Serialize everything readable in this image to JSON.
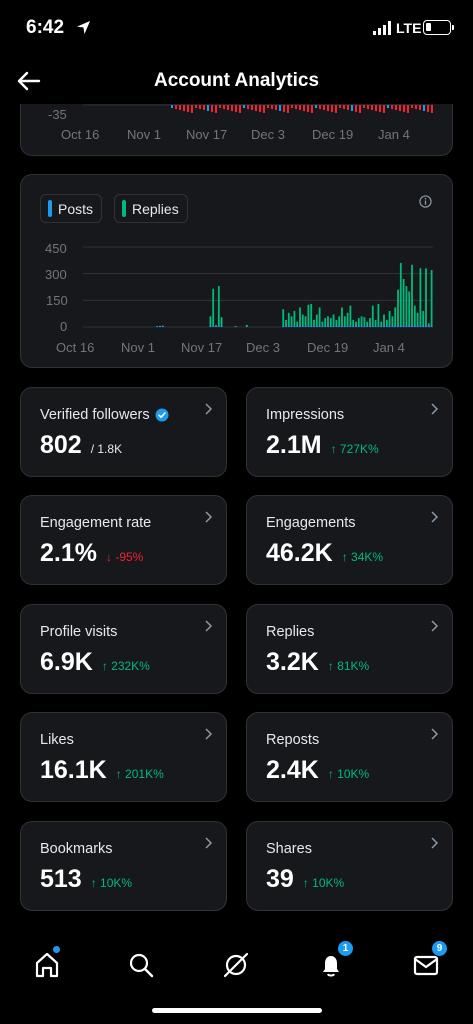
{
  "status_bar": {
    "time": "6:42",
    "network": "LTE"
  },
  "header": {
    "title": "Account Analytics"
  },
  "top_chart": {
    "ytick": "-35",
    "xticks": [
      "Oct 16",
      "Nov 1",
      "Nov 17",
      "Dec 3",
      "Dec 19",
      "Jan 4"
    ]
  },
  "chart_data": {
    "type": "bar",
    "legend": [
      "Posts",
      "Replies"
    ],
    "colors": {
      "posts": "#1d9bf0",
      "replies": "#00ba7c"
    },
    "yticks": [
      "450",
      "300",
      "150",
      "0"
    ],
    "xticks": [
      "Oct 16",
      "Nov 1",
      "Nov 17",
      "Dec 3",
      "Dec 19",
      "Jan 4"
    ],
    "ylim": [
      0,
      450
    ],
    "grid": true,
    "replies": [
      0,
      0,
      0,
      0,
      0,
      0,
      0,
      0,
      0,
      0,
      0,
      0,
      0,
      0,
      0,
      0,
      0,
      0,
      0,
      0,
      0,
      0,
      0,
      0,
      0,
      0,
      5,
      6,
      8,
      0,
      0,
      0,
      0,
      0,
      0,
      0,
      0,
      0,
      0,
      0,
      0,
      0,
      0,
      0,
      0,
      60,
      215,
      10,
      230,
      55,
      0,
      0,
      0,
      0,
      4,
      0,
      0,
      0,
      12,
      0,
      0,
      0,
      0,
      0,
      0,
      0,
      0,
      0,
      0,
      0,
      0,
      100,
      40,
      80,
      60,
      90,
      30,
      110,
      70,
      60,
      125,
      130,
      40,
      70,
      110,
      30,
      50,
      60,
      50,
      70,
      40,
      60,
      110,
      60,
      80,
      120,
      40,
      30,
      50,
      60,
      55,
      30,
      50,
      120,
      40,
      130,
      30,
      70,
      40,
      90,
      60,
      110,
      210,
      360,
      270,
      230,
      200,
      350,
      120,
      80,
      330,
      90,
      330,
      20,
      320
    ],
    "posts": [
      0,
      0,
      0,
      0,
      0,
      0,
      0,
      0,
      0,
      0,
      0,
      0,
      0,
      0,
      0,
      0,
      0,
      0,
      0,
      0,
      0,
      0,
      0,
      0,
      0,
      0,
      2,
      2,
      3,
      0,
      0,
      0,
      0,
      0,
      0,
      0,
      0,
      0,
      0,
      0,
      0,
      0,
      0,
      0,
      0,
      6,
      5,
      4,
      6,
      5,
      0,
      0,
      0,
      0,
      2,
      0,
      0,
      0,
      3,
      0,
      0,
      0,
      0,
      0,
      0,
      0,
      0,
      0,
      0,
      0,
      0,
      6,
      6,
      7,
      6,
      8,
      6,
      7,
      8,
      6,
      7,
      8,
      6,
      7,
      8,
      6,
      7,
      8,
      6,
      7,
      8,
      6,
      7,
      8,
      6,
      7,
      8,
      6,
      7,
      8,
      6,
      7,
      8,
      6,
      7,
      8,
      6,
      7,
      8,
      6,
      7,
      9,
      10,
      9,
      8,
      10,
      9,
      8,
      10,
      9,
      8,
      10,
      9,
      8,
      10
    ]
  },
  "stats": [
    {
      "label": "Verified followers",
      "value": "802",
      "sub": "/ 1.8K",
      "delta": "",
      "dir": ""
    },
    {
      "label": "Impressions",
      "value": "2.1M",
      "sub": "",
      "delta": "↑ 727K%",
      "dir": "up"
    },
    {
      "label": "Engagement rate",
      "value": "2.1%",
      "sub": "",
      "delta": "↓ -95%",
      "dir": "down"
    },
    {
      "label": "Engagements",
      "value": "46.2K",
      "sub": "",
      "delta": "↑ 34K%",
      "dir": "up"
    },
    {
      "label": "Profile visits",
      "value": "6.9K",
      "sub": "",
      "delta": "↑ 232K%",
      "dir": "up"
    },
    {
      "label": "Replies",
      "value": "3.2K",
      "sub": "",
      "delta": "↑ 81K%",
      "dir": "up"
    },
    {
      "label": "Likes",
      "value": "16.1K",
      "sub": "",
      "delta": "↑ 201K%",
      "dir": "up"
    },
    {
      "label": "Reposts",
      "value": "2.4K",
      "sub": "",
      "delta": "↑ 10K%",
      "dir": "up"
    },
    {
      "label": "Bookmarks",
      "value": "513",
      "sub": "",
      "delta": "↑ 10K%",
      "dir": "up"
    },
    {
      "label": "Shares",
      "value": "39",
      "sub": "",
      "delta": "↑ 10K%",
      "dir": "up"
    }
  ],
  "tabbar": {
    "notifications_badge": "1",
    "messages_badge": "9",
    "icons": [
      "home-icon",
      "search-icon",
      "grok-icon",
      "bell-icon",
      "mail-icon"
    ]
  }
}
